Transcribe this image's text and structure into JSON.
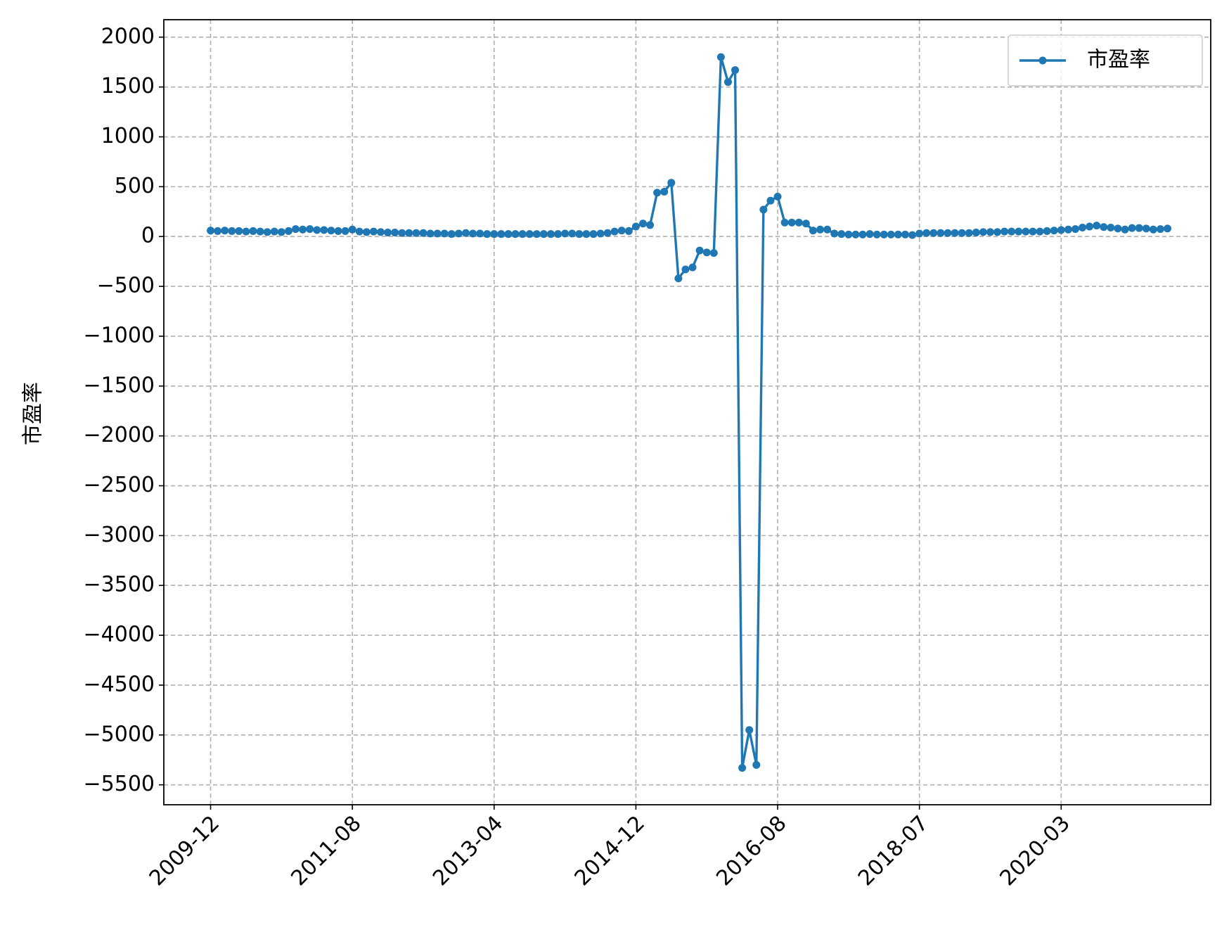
{
  "chart_data": {
    "type": "line",
    "y_label": "市盈率",
    "categories": [
      "2009-12",
      null,
      null,
      null,
      null,
      null,
      null,
      null,
      null,
      null,
      null,
      null,
      null,
      null,
      null,
      null,
      null,
      null,
      null,
      null,
      "2011-08",
      null,
      null,
      null,
      null,
      null,
      null,
      null,
      null,
      null,
      null,
      null,
      null,
      null,
      null,
      null,
      null,
      null,
      null,
      null,
      "2013-04",
      null,
      null,
      null,
      null,
      null,
      null,
      null,
      null,
      null,
      null,
      null,
      null,
      null,
      null,
      null,
      null,
      null,
      null,
      null,
      "2014-12",
      null,
      null,
      null,
      null,
      null,
      null,
      null,
      null,
      null,
      null,
      null,
      null,
      null,
      null,
      null,
      null,
      null,
      null,
      null,
      "2016-08",
      null,
      null,
      null,
      null,
      null,
      null,
      null,
      null,
      null,
      null,
      null,
      null,
      null,
      null,
      null,
      null,
      null,
      null,
      null,
      "2018-07",
      null,
      null,
      null,
      null,
      null,
      null,
      null,
      null,
      null,
      null,
      null,
      null,
      null,
      null,
      null,
      null,
      null,
      null,
      null,
      "2020-03",
      null,
      null,
      null,
      null,
      null,
      null,
      null,
      null,
      null,
      null,
      null,
      null,
      null,
      null,
      null
    ],
    "series": [
      {
        "name": "市盈率",
        "color": "#1f77b4",
        "values": [
          60,
          55,
          60,
          55,
          55,
          50,
          55,
          50,
          45,
          50,
          45,
          55,
          75,
          70,
          75,
          65,
          65,
          60,
          55,
          55,
          70,
          50,
          45,
          50,
          45,
          40,
          40,
          35,
          35,
          35,
          35,
          30,
          30,
          30,
          25,
          30,
          35,
          30,
          30,
          25,
          25,
          25,
          25,
          25,
          25,
          25,
          25,
          25,
          25,
          25,
          30,
          30,
          25,
          25,
          25,
          30,
          35,
          50,
          60,
          55,
          100,
          130,
          115,
          440,
          450,
          540,
          -420,
          -330,
          -310,
          -140,
          -160,
          -165,
          1800,
          1550,
          1670,
          -5330,
          -4950,
          -5300,
          270,
          360,
          400,
          140,
          140,
          140,
          130,
          60,
          70,
          70,
          30,
          25,
          20,
          20,
          20,
          25,
          20,
          20,
          20,
          20,
          20,
          15,
          30,
          35,
          35,
          35,
          35,
          35,
          35,
          35,
          40,
          45,
          45,
          45,
          50,
          50,
          50,
          50,
          50,
          50,
          55,
          60,
          65,
          70,
          75,
          90,
          100,
          110,
          95,
          90,
          80,
          70,
          85,
          85,
          80,
          70,
          75,
          80
        ]
      }
    ],
    "xlim": [
      -6.6,
      141.1
    ],
    "ylim": [
      -5700,
      2175
    ],
    "yticks": [
      2000,
      1500,
      1000,
      500,
      0,
      {
        "value": -500,
        "label": "−500"
      },
      {
        "value": -1000,
        "label": "−1000"
      },
      {
        "value": -1500,
        "label": "−1500"
      },
      {
        "value": -2000,
        "label": "−2000"
      },
      {
        "value": -2500,
        "label": "−2500"
      },
      {
        "value": -3000,
        "label": "−3000"
      },
      {
        "value": -3500,
        "label": "−3500"
      },
      {
        "value": -4000,
        "label": "−4000"
      },
      {
        "value": -4500,
        "label": "−4500"
      },
      {
        "value": -5000,
        "label": "−5000"
      },
      {
        "value": -5500,
        "label": "−5500"
      }
    ],
    "grid": true,
    "legend": "upper right"
  }
}
